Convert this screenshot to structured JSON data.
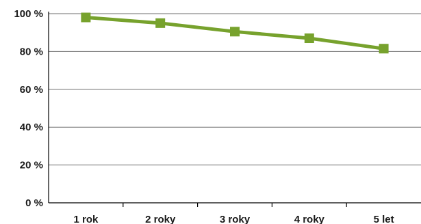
{
  "chart_data": {
    "type": "line",
    "categories": [
      "1 rok",
      "2 roky",
      "3 roky",
      "4 roky",
      "5 let"
    ],
    "series": [
      {
        "values": [
          98,
          95,
          90.5,
          87,
          81.5
        ],
        "color": "#77a22d",
        "marker": "square"
      }
    ],
    "y_ticks": [
      "0 %",
      "20 %",
      "40 %",
      "60 %",
      "80 %",
      "100 %"
    ],
    "ylim": [
      0,
      100
    ],
    "grid": true,
    "legend": "none"
  }
}
